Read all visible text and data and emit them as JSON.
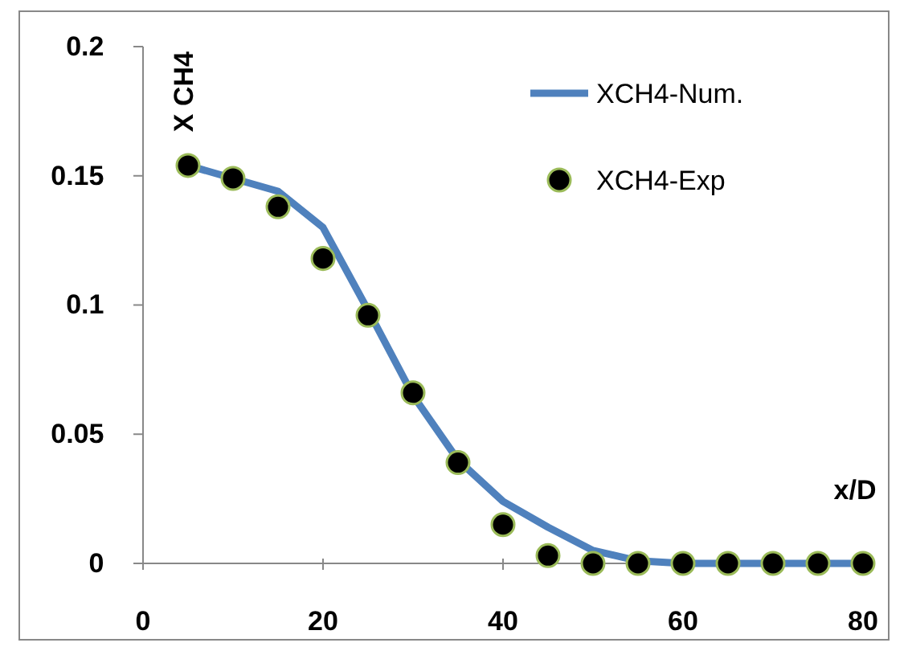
{
  "chart_data": {
    "type": "line",
    "xlabel": "x/D",
    "ylabel": "X CH4",
    "xlim": [
      0,
      80
    ],
    "xticks": [
      0,
      20,
      40,
      60,
      80
    ],
    "ylim": [
      0,
      0.2
    ],
    "yticks": [
      0,
      0.05,
      0.1,
      0.15,
      0.2
    ],
    "grid": false,
    "legend": "top right",
    "series": [
      {
        "name": "XCH4-Num.",
        "color": "#4f81bd",
        "marker": "none",
        "line_style": "solid",
        "x": [
          5,
          10,
          15,
          20,
          25,
          30,
          35,
          40,
          45,
          50,
          55,
          60,
          65,
          70,
          75,
          80
        ],
        "values": [
          0.154,
          0.149,
          0.144,
          0.13,
          0.098,
          0.065,
          0.04,
          0.024,
          0.014,
          0.005,
          0.001,
          0,
          0,
          0,
          0,
          0
        ]
      },
      {
        "name": "XCH4-Exp",
        "type": "scatter",
        "color": "#000000",
        "marker": "circle",
        "x": [
          5,
          10,
          15,
          20,
          25,
          30,
          35,
          40,
          45,
          50,
          55,
          60,
          65,
          70,
          75,
          80
        ],
        "values": [
          0.154,
          0.149,
          0.138,
          0.118,
          0.096,
          0.066,
          0.039,
          0.015,
          0.003,
          0,
          0,
          0,
          0,
          0,
          0,
          0
        ]
      }
    ]
  }
}
